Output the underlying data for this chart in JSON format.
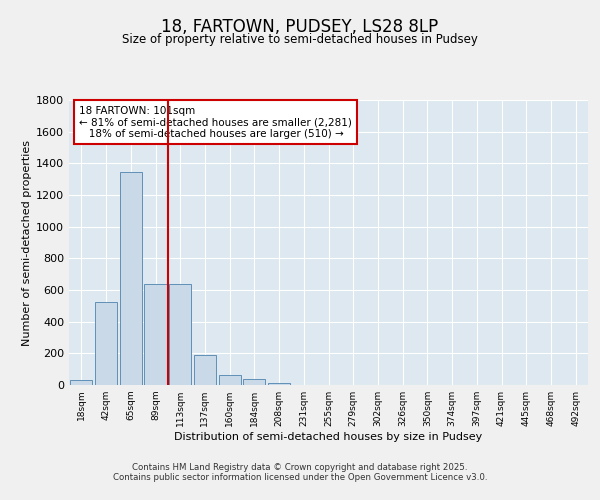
{
  "title": "18, FARTOWN, PUDSEY, LS28 8LP",
  "subtitle": "Size of property relative to semi-detached houses in Pudsey",
  "xlabel": "Distribution of semi-detached houses by size in Pudsey",
  "ylabel": "Number of semi-detached properties",
  "bar_labels": [
    "18sqm",
    "42sqm",
    "65sqm",
    "89sqm",
    "113sqm",
    "137sqm",
    "160sqm",
    "184sqm",
    "208sqm",
    "231sqm",
    "255sqm",
    "279sqm",
    "302sqm",
    "326sqm",
    "350sqm",
    "374sqm",
    "397sqm",
    "421sqm",
    "445sqm",
    "468sqm",
    "492sqm"
  ],
  "bar_values": [
    30,
    525,
    1345,
    635,
    635,
    190,
    65,
    35,
    15,
    0,
    0,
    0,
    0,
    0,
    0,
    0,
    0,
    0,
    0,
    0,
    0
  ],
  "bar_color": "#c9d9e8",
  "bar_edge_color": "#6090b8",
  "vline_color": "#cc0000",
  "vline_x": 3.5,
  "annotation_text": "18 FARTOWN: 101sqm\n← 81% of semi-detached houses are smaller (2,281)\n   18% of semi-detached houses are larger (510) →",
  "annotation_box_color": "#ffffff",
  "annotation_box_edge": "#cc0000",
  "ylim": [
    0,
    1800
  ],
  "yticks": [
    0,
    200,
    400,
    600,
    800,
    1000,
    1200,
    1400,
    1600,
    1800
  ],
  "background_color": "#dde8f0",
  "grid_color": "#ffffff",
  "fig_background": "#f0f0f0",
  "footer_line1": "Contains HM Land Registry data © Crown copyright and database right 2025.",
  "footer_line2": "Contains public sector information licensed under the Open Government Licence v3.0."
}
